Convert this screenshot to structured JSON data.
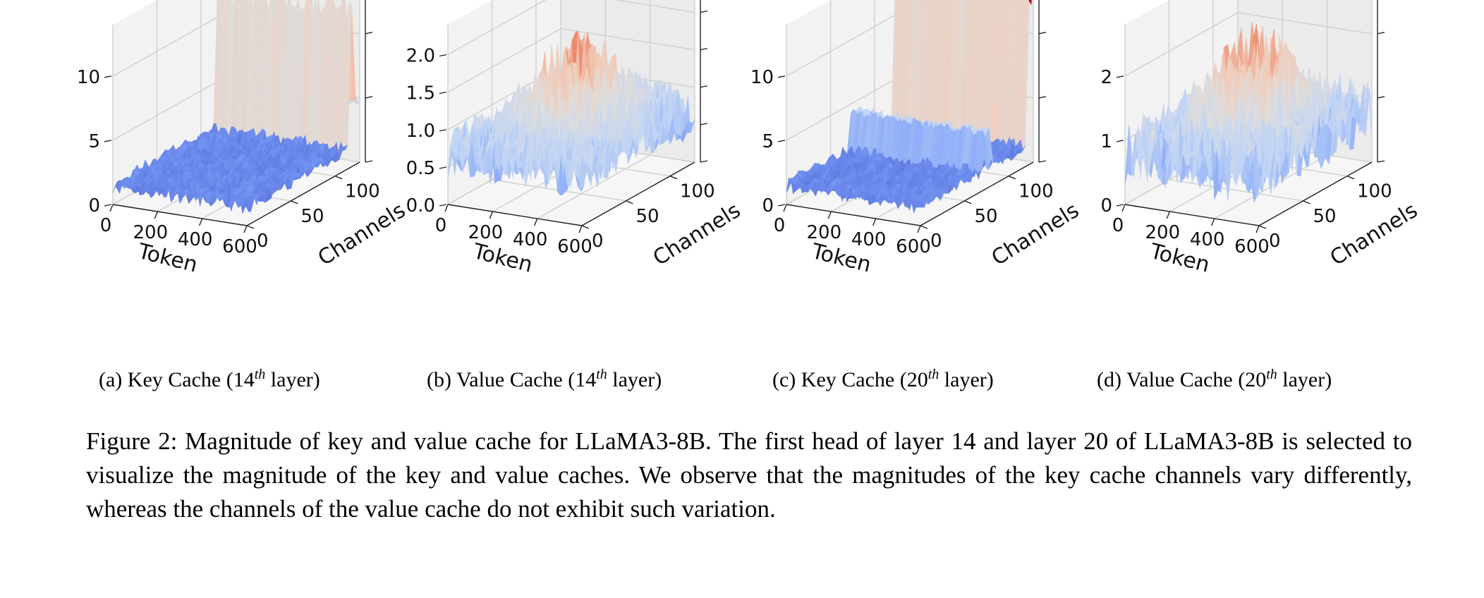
{
  "chart_data": [
    {
      "type": "surface3d",
      "subcaption": {
        "prefix": "(a) Key Cache (14",
        "sup": "th",
        "suffix": " layer)"
      },
      "xlabel": "Token",
      "ylabel": "Channels",
      "xticks": [
        "0",
        "200",
        "400",
        "600"
      ],
      "yticks": [
        "0",
        "50",
        "100"
      ],
      "zticks": [
        "0",
        "5",
        "10"
      ],
      "xlim": [
        0,
        600
      ],
      "ylim": [
        0,
        128
      ],
      "zlim": [
        0,
        14
      ],
      "surface": {
        "base": 1.5,
        "noise": 0.6,
        "channel_bands": [
          {
            "channel_from": 0.92,
            "channel_to": 0.96,
            "height": 12.5
          },
          {
            "channel_from": 0.95,
            "channel_to": 1.0,
            "height": 5.0
          }
        ]
      }
    },
    {
      "type": "surface3d",
      "subcaption": {
        "prefix": "(b) Value Cache (14",
        "sup": "th",
        "suffix": " layer)"
      },
      "xlabel": "Token",
      "ylabel": "Channels",
      "xticks": [
        "0",
        "200",
        "400",
        "600"
      ],
      "yticks": [
        "0",
        "50",
        "100"
      ],
      "zticks": [
        "0.0",
        "0.5",
        "1.0",
        "1.5",
        "2.0"
      ],
      "xlim": [
        0,
        600
      ],
      "ylim": [
        0,
        128
      ],
      "zlim": [
        0,
        2.4
      ],
      "surface": {
        "base": 0.7,
        "noise": 0.35,
        "channel_bands": []
      }
    },
    {
      "type": "surface3d",
      "subcaption": {
        "prefix": "(c) Key Cache (20",
        "sup": "th",
        "suffix": " layer)"
      },
      "xlabel": "Token",
      "ylabel": "Channels",
      "xticks": [
        "0",
        "200",
        "400",
        "600"
      ],
      "yticks": [
        "0",
        "50",
        "100"
      ],
      "zticks": [
        "0",
        "5",
        "10"
      ],
      "xlim": [
        0,
        600
      ],
      "ylim": [
        0,
        128
      ],
      "zlim": [
        0,
        14
      ],
      "surface": {
        "base": 1.5,
        "noise": 0.6,
        "channel_bands": [
          {
            "channel_from": 0.94,
            "channel_to": 1.0,
            "height": 13.5
          },
          {
            "channel_from": 0.55,
            "channel_to": 0.62,
            "height": 4.5
          }
        ]
      }
    },
    {
      "type": "surface3d",
      "subcaption": {
        "prefix": "(d) Value Cache (20",
        "sup": "th",
        "suffix": " layer)"
      },
      "xlabel": "Token",
      "ylabel": "Channels",
      "xticks": [
        "0",
        "200",
        "400",
        "600"
      ],
      "yticks": [
        "0",
        "50",
        "100"
      ],
      "zticks": [
        "0",
        "1",
        "2"
      ],
      "xlim": [
        0,
        600
      ],
      "ylim": [
        0,
        128
      ],
      "zlim": [
        0,
        2.8
      ],
      "surface": {
        "base": 0.8,
        "noise": 0.5,
        "channel_bands": []
      }
    }
  ],
  "caption": "Figure 2:  Magnitude of key and value cache for LLaMA3-8B. The first head of layer 14 and layer 20 of LLaMA3-8B is selected to visualize the magnitude of the key and value caches.  We observe that the magnitudes of the key cache channels vary differently, whereas the channels of the value cache do not exhibit such variation."
}
